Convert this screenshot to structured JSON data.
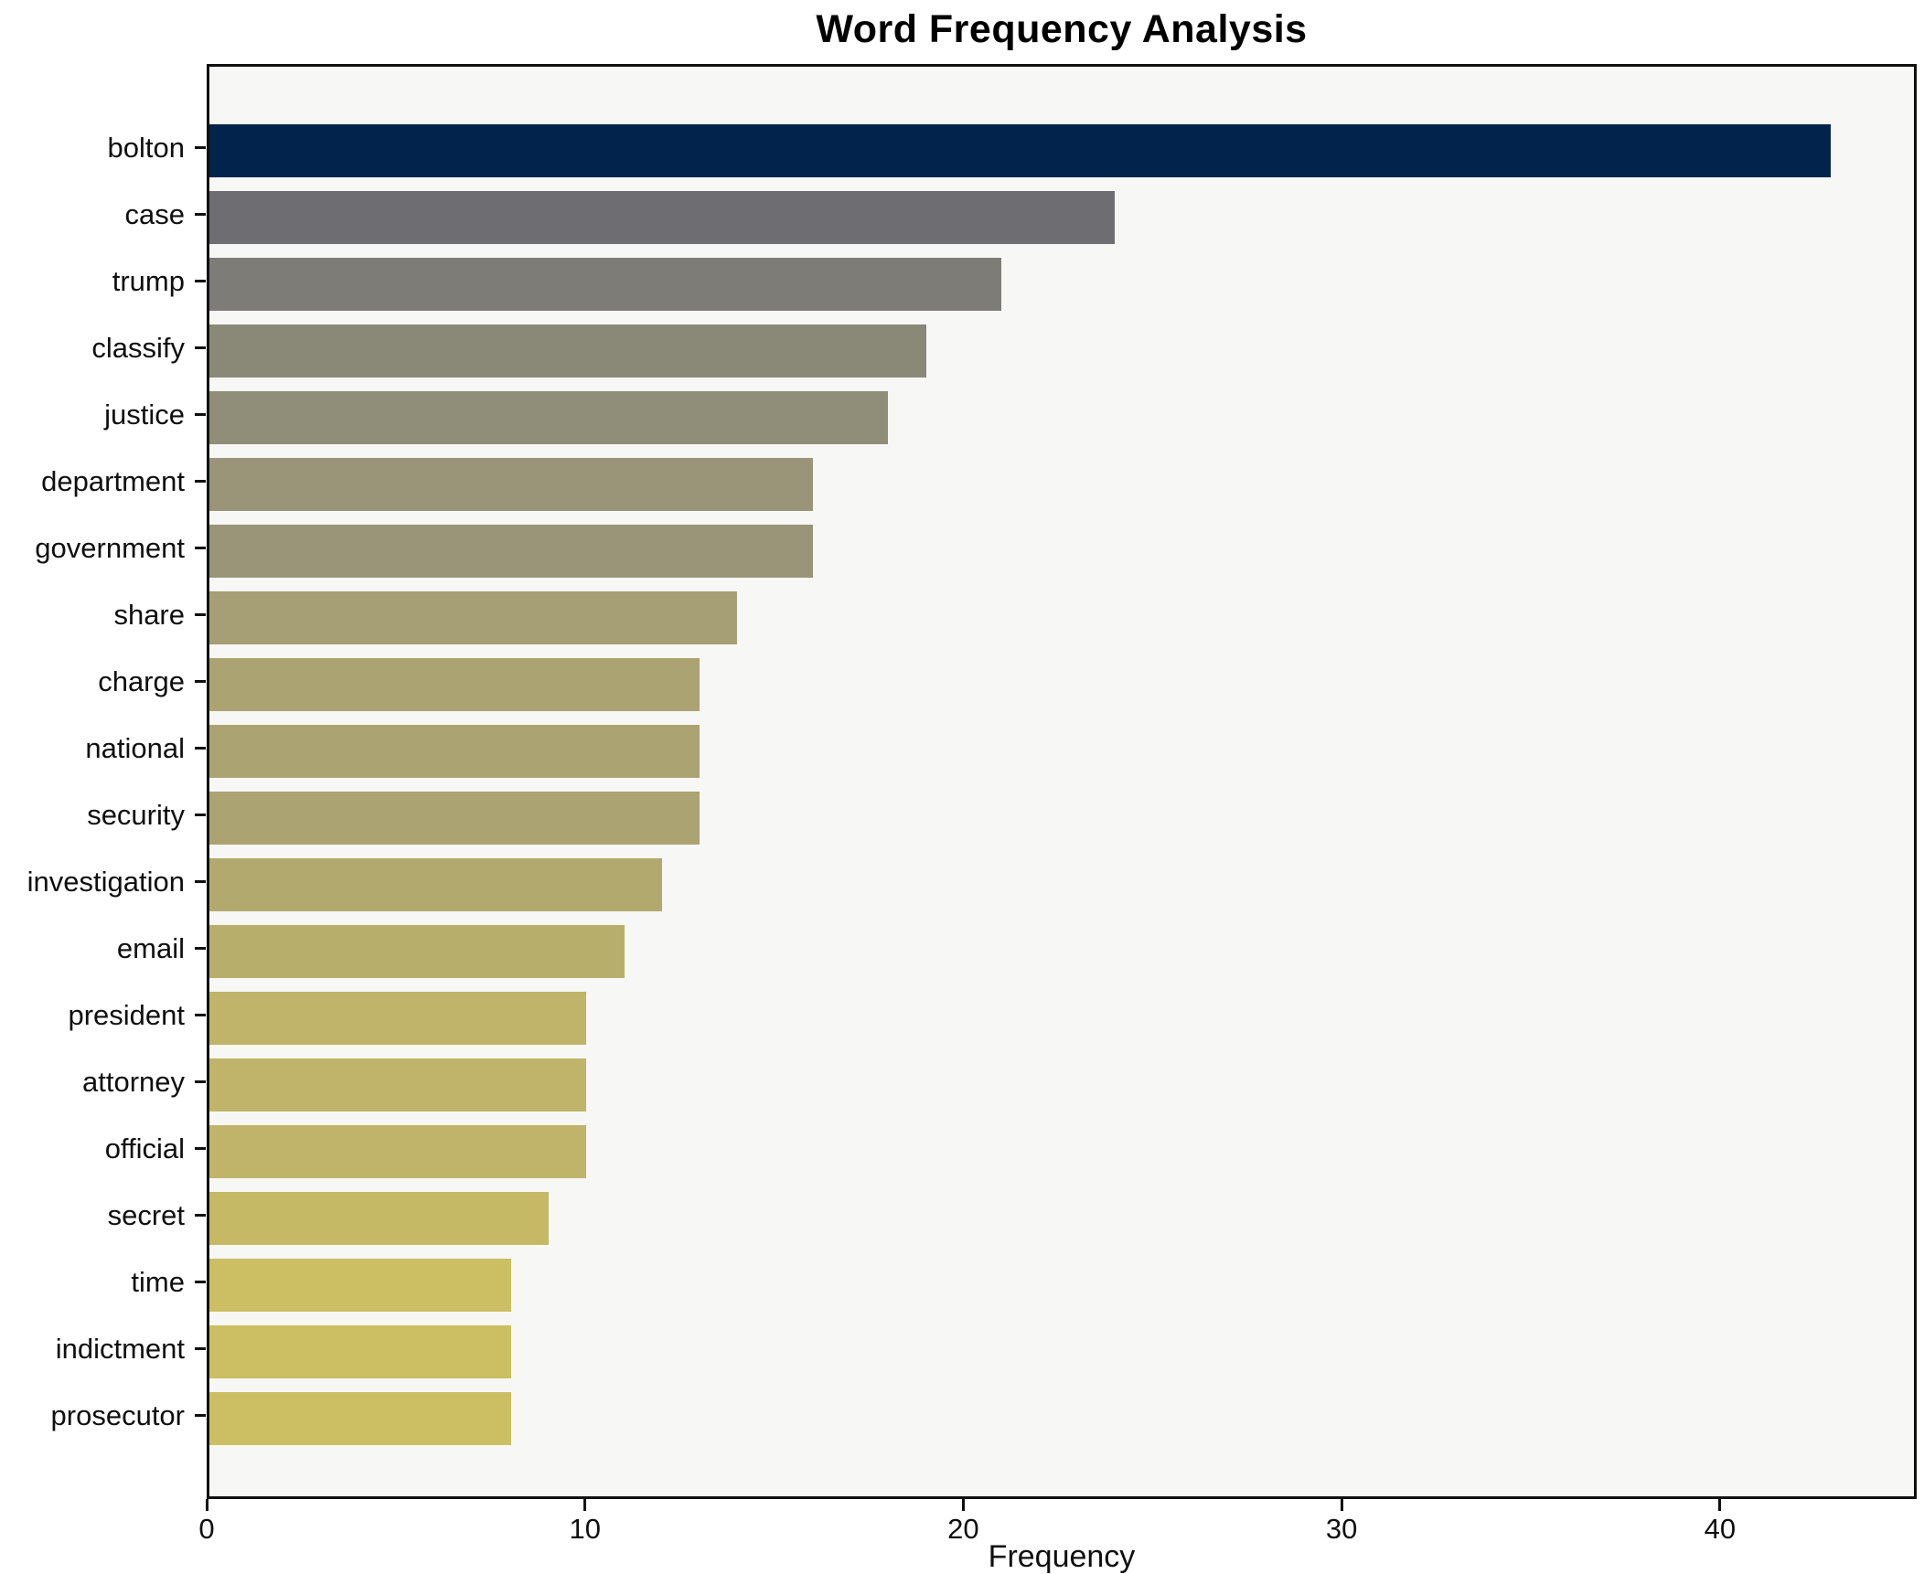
{
  "title": "Word Frequency Analysis",
  "xlabel": "Frequency",
  "chart_data": {
    "type": "bar",
    "orientation": "horizontal",
    "title": "Word Frequency Analysis",
    "xlabel": "Frequency",
    "ylabel": "",
    "categories": [
      "bolton",
      "case",
      "trump",
      "classify",
      "justice",
      "department",
      "government",
      "share",
      "charge",
      "national",
      "security",
      "investigation",
      "email",
      "president",
      "attorney",
      "official",
      "secret",
      "time",
      "indictment",
      "prosecutor"
    ],
    "values": [
      43,
      24,
      21,
      19,
      18,
      16,
      16,
      14,
      13,
      13,
      13,
      12,
      11,
      10,
      10,
      10,
      9,
      8,
      8,
      8
    ],
    "bar_colors": [
      "#02234c",
      "#6e6e72",
      "#7d7c76",
      "#8a8877",
      "#908d78",
      "#9a9579",
      "#9a9579",
      "#a69f76",
      "#aca372",
      "#aca372",
      "#aca372",
      "#b2a96f",
      "#b8ae6c",
      "#bfb469",
      "#bfb469",
      "#bfb469",
      "#c6b965",
      "#ccbe62",
      "#ccbe62",
      "#ccbe62"
    ],
    "xlim": [
      0,
      45.2
    ],
    "xticks": [
      0,
      10,
      20,
      30,
      40
    ],
    "grid": false,
    "legend": false,
    "plot_background": "#f7f7f5",
    "frame_color": "#0f0f0f",
    "colormap": "cividis"
  }
}
